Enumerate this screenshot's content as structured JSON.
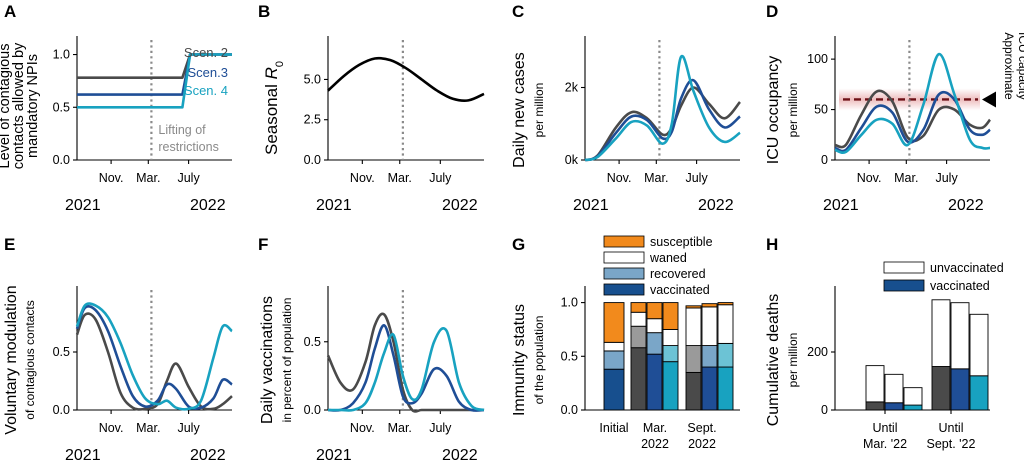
{
  "colors": {
    "scen2": "#4a4a4a",
    "scen3": "#1f4e96",
    "scen4": "#18a2c0",
    "susceptible": "#f28a1c",
    "recovered": "#7aa6c8",
    "vaccinated": "#174f8e",
    "icu": "#c0151b"
  },
  "chart_data": [
    {
      "id": "A",
      "type": "line",
      "ylabel": "Level of contagious contacts allowed by mandatory NPIs",
      "yticks": [
        "0.0",
        "0.5",
        "1.0"
      ],
      "ylim": [
        0,
        1.1
      ],
      "xticks": [
        "Nov.",
        "Mar.",
        "July"
      ],
      "years": [
        "2021",
        "2022"
      ],
      "annotation": "Lifting of restrictions",
      "series": [
        {
          "name": "Scen. 2",
          "label_text": "Scen.  2",
          "x": [
            0,
            0.68,
            0.73,
            1
          ],
          "values": [
            0.78,
            0.78,
            1.0,
            1.0
          ]
        },
        {
          "name": "Scen.3",
          "label_text": "Scen.3",
          "x": [
            0,
            0.68,
            0.73,
            1
          ],
          "values": [
            0.62,
            0.62,
            1.0,
            1.0
          ]
        },
        {
          "name": "Scen. 4",
          "label_text": "Scen. 4",
          "x": [
            0,
            0.68,
            0.73,
            1
          ],
          "values": [
            0.5,
            0.5,
            1.0,
            1.0
          ]
        }
      ]
    },
    {
      "id": "B",
      "type": "line",
      "ylabel_main": "Seasonal ",
      "ylabel_sym": "R",
      "ylabel_sub": "0",
      "yticks": [
        "0.0",
        "2.5",
        "5.0"
      ],
      "ylim": [
        0,
        7.2
      ],
      "xticks": [
        "Nov.",
        "Mar.",
        "July"
      ],
      "years": [
        "2021",
        "2022"
      ],
      "series": [
        {
          "name": "Seasonal R0",
          "x": [
            0,
            0.1,
            0.2,
            0.3,
            0.4,
            0.5,
            0.6,
            0.7,
            0.8,
            0.9,
            1.0
          ],
          "values": [
            4.3,
            5.2,
            5.9,
            6.3,
            6.2,
            5.7,
            5.0,
            4.3,
            3.8,
            3.7,
            4.1
          ]
        }
      ]
    },
    {
      "id": "C",
      "type": "line",
      "ylabel": "Daily new cases",
      "ysub": "per million",
      "yticks": [
        "0k",
        "2k"
      ],
      "ylim": [
        0,
        3200
      ],
      "xticks": [
        "Nov.",
        "Mar.",
        "July"
      ],
      "years": [
        "2021",
        "2022"
      ],
      "series": [
        {
          "name": "Scen. 2",
          "x": [
            0,
            0.08,
            0.2,
            0.3,
            0.4,
            0.5,
            0.56,
            0.62,
            0.7,
            0.8,
            0.9,
            1.0
          ],
          "values": [
            0,
            120,
            900,
            1320,
            1150,
            700,
            880,
            1500,
            2000,
            1550,
            1150,
            1600
          ]
        },
        {
          "name": "Scen.3",
          "x": [
            0,
            0.08,
            0.2,
            0.3,
            0.4,
            0.5,
            0.56,
            0.62,
            0.7,
            0.8,
            0.9,
            1.0
          ],
          "values": [
            0,
            100,
            750,
            1200,
            1100,
            600,
            780,
            1700,
            2200,
            1400,
            900,
            1200
          ]
        },
        {
          "name": "Scen. 4",
          "x": [
            0,
            0.08,
            0.2,
            0.3,
            0.4,
            0.5,
            0.56,
            0.62,
            0.7,
            0.8,
            0.9,
            1.0
          ],
          "values": [
            0,
            80,
            600,
            1050,
            950,
            450,
            1000,
            2850,
            1900,
            900,
            500,
            750
          ]
        }
      ]
    },
    {
      "id": "D",
      "type": "line",
      "ylabel": "ICU occupancy",
      "ysub": "per million",
      "yticks": [
        "0",
        "50",
        "100"
      ],
      "ylim": [
        0,
        115
      ],
      "xticks": [
        "Nov.",
        "Mar.",
        "July"
      ],
      "years": [
        "2021",
        "2022"
      ],
      "capacity": 60,
      "capacity_label": [
        "Approximate",
        "ICU capacity"
      ],
      "series": [
        {
          "name": "Scen. 2",
          "x": [
            0,
            0.07,
            0.17,
            0.27,
            0.37,
            0.47,
            0.57,
            0.67,
            0.77,
            0.87,
            0.95,
            1.0
          ],
          "values": [
            15,
            15,
            45,
            68,
            58,
            22,
            24,
            50,
            50,
            35,
            32,
            40
          ]
        },
        {
          "name": "Scen.3",
          "x": [
            0,
            0.07,
            0.17,
            0.27,
            0.37,
            0.47,
            0.57,
            0.67,
            0.77,
            0.87,
            0.95,
            1.0
          ],
          "values": [
            12,
            10,
            32,
            53,
            47,
            18,
            30,
            65,
            60,
            30,
            25,
            30
          ]
        },
        {
          "name": "Scen. 4",
          "x": [
            0,
            0.07,
            0.17,
            0.27,
            0.37,
            0.47,
            0.57,
            0.67,
            0.77,
            0.87,
            0.95,
            1.0
          ],
          "values": [
            10,
            8,
            25,
            40,
            36,
            15,
            55,
            105,
            65,
            20,
            12,
            12
          ]
        }
      ]
    },
    {
      "id": "E",
      "type": "line",
      "ylabel": "Voluntary modulation",
      "ysub": "of contagious contacts",
      "yticks": [
        "0.0",
        "0.5"
      ],
      "ylim": [
        0,
        1.0
      ],
      "xticks": [
        "Nov.",
        "Mar.",
        "July"
      ],
      "years": [
        "2021",
        "2022"
      ],
      "series": [
        {
          "name": "Scen. 2",
          "x": [
            0,
            0.05,
            0.12,
            0.2,
            0.28,
            0.36,
            0.44,
            0.52,
            0.58,
            0.64,
            0.72,
            0.8,
            0.88,
            0.94,
            1.0
          ],
          "values": [
            0.65,
            0.82,
            0.78,
            0.5,
            0.15,
            0.02,
            0.01,
            0.05,
            0.25,
            0.4,
            0.2,
            0.03,
            0.01,
            0.05,
            0.12
          ]
        },
        {
          "name": "Scen.3",
          "x": [
            0,
            0.05,
            0.12,
            0.2,
            0.28,
            0.36,
            0.44,
            0.52,
            0.58,
            0.64,
            0.72,
            0.8,
            0.88,
            0.94,
            1.0
          ],
          "values": [
            0.7,
            0.88,
            0.86,
            0.68,
            0.38,
            0.12,
            0.03,
            0.08,
            0.22,
            0.18,
            0.03,
            0.02,
            0.1,
            0.26,
            0.22
          ]
        },
        {
          "name": "Scen. 4",
          "x": [
            0,
            0.05,
            0.12,
            0.2,
            0.28,
            0.36,
            0.44,
            0.52,
            0.58,
            0.64,
            0.72,
            0.8,
            0.88,
            0.94,
            1.0
          ],
          "values": [
            0.72,
            0.9,
            0.9,
            0.8,
            0.58,
            0.3,
            0.1,
            0.05,
            0.08,
            0.02,
            0.01,
            0.08,
            0.45,
            0.72,
            0.68
          ]
        }
      ]
    },
    {
      "id": "F",
      "type": "line",
      "ylabel": "Daily vaccinations",
      "ysub": "in percent of population",
      "yticks": [
        "0.0",
        "0.5"
      ],
      "ylim": [
        0,
        0.85
      ],
      "xticks": [
        "Nov.",
        "Mar.",
        "July"
      ],
      "years": [
        "2021",
        "2022"
      ],
      "series": [
        {
          "name": "Scen. 2",
          "x": [
            0,
            0.08,
            0.16,
            0.24,
            0.3,
            0.36,
            0.42,
            0.48,
            0.54,
            0.6,
            0.68,
            0.76,
            0.84,
            0.92,
            1.0
          ],
          "values": [
            0.4,
            0.2,
            0.15,
            0.35,
            0.62,
            0.7,
            0.5,
            0.15,
            0.0,
            0.0,
            0.0,
            0.0,
            0.0,
            0.0,
            0.0
          ]
        },
        {
          "name": "Scen.3",
          "x": [
            0,
            0.08,
            0.16,
            0.24,
            0.3,
            0.36,
            0.42,
            0.48,
            0.54,
            0.6,
            0.68,
            0.76,
            0.84,
            0.92,
            1.0
          ],
          "values": [
            0.0,
            0.0,
            0.05,
            0.2,
            0.45,
            0.62,
            0.4,
            0.1,
            0.05,
            0.12,
            0.3,
            0.25,
            0.06,
            0.0,
            0.0
          ]
        },
        {
          "name": "Scen. 4",
          "x": [
            0,
            0.08,
            0.16,
            0.24,
            0.3,
            0.36,
            0.42,
            0.48,
            0.54,
            0.6,
            0.68,
            0.76,
            0.84,
            0.92,
            1.0
          ],
          "values": [
            0.0,
            0.0,
            0.0,
            0.05,
            0.2,
            0.42,
            0.55,
            0.25,
            0.08,
            0.15,
            0.5,
            0.58,
            0.2,
            0.03,
            0.0
          ]
        }
      ]
    },
    {
      "id": "G",
      "type": "bar",
      "ylabel": "Immunity status",
      "ysub": "of the population",
      "yticks": [
        "0.0",
        "0.5",
        "1.0"
      ],
      "ylim": [
        0,
        1.08
      ],
      "groups": [
        "Initial",
        "Mar.\n2022",
        "Sept.\n2022"
      ],
      "legend": [
        "susceptible",
        "waned",
        "recovered",
        "vaccinated"
      ],
      "bars": [
        {
          "group": "Initial",
          "scenario": "all",
          "vaccinated": 0.38,
          "recovered": 0.17,
          "waned": 0.08,
          "susceptible": 0.37
        },
        {
          "group": "Mar.\n2022",
          "scenario": "Scen. 2",
          "vaccinated": 0.58,
          "recovered": 0.2,
          "waned": 0.13,
          "susceptible": 0.09
        },
        {
          "group": "Mar.\n2022",
          "scenario": "Scen.3",
          "vaccinated": 0.52,
          "recovered": 0.2,
          "waned": 0.13,
          "susceptible": 0.15
        },
        {
          "group": "Mar.\n2022",
          "scenario": "Scen. 4",
          "vaccinated": 0.45,
          "recovered": 0.15,
          "waned": 0.15,
          "susceptible": 0.25
        },
        {
          "group": "Sept.\n2022",
          "scenario": "Scen. 2",
          "vaccinated": 0.35,
          "recovered": 0.25,
          "waned": 0.35,
          "susceptible": 0.02
        },
        {
          "group": "Sept.\n2022",
          "scenario": "Scen.3",
          "vaccinated": 0.4,
          "recovered": 0.2,
          "waned": 0.36,
          "susceptible": 0.03
        },
        {
          "group": "Sept.\n2022",
          "scenario": "Scen. 4",
          "vaccinated": 0.4,
          "recovered": 0.22,
          "waned": 0.36,
          "susceptible": 0.02
        }
      ]
    },
    {
      "id": "H",
      "type": "bar",
      "ylabel": "Cumulative deaths",
      "ysub": "per million",
      "yticks": [
        "0",
        "200"
      ],
      "ylim": [
        0,
        400
      ],
      "groups": [
        "Until\nMar. '22",
        "Until\nSept. '22"
      ],
      "legend": [
        "unvaccinated",
        "vaccinated"
      ],
      "bars": [
        {
          "group": "Until\nMar. '22",
          "scenario": "Scen. 2",
          "vaccinated": 28,
          "unvaccinated": 125
        },
        {
          "group": "Until\nMar. '22",
          "scenario": "Scen.3",
          "vaccinated": 25,
          "unvaccinated": 98
        },
        {
          "group": "Until\nMar. '22",
          "scenario": "Scen. 4",
          "vaccinated": 17,
          "unvaccinated": 60
        },
        {
          "group": "Until\nSept. '22",
          "scenario": "Scen. 2",
          "vaccinated": 150,
          "unvaccinated": 230
        },
        {
          "group": "Until\nSept. '22",
          "scenario": "Scen.3",
          "vaccinated": 142,
          "unvaccinated": 228
        },
        {
          "group": "Until\nSept. '22",
          "scenario": "Scen. 4",
          "vaccinated": 118,
          "unvaccinated": 212
        }
      ]
    }
  ]
}
